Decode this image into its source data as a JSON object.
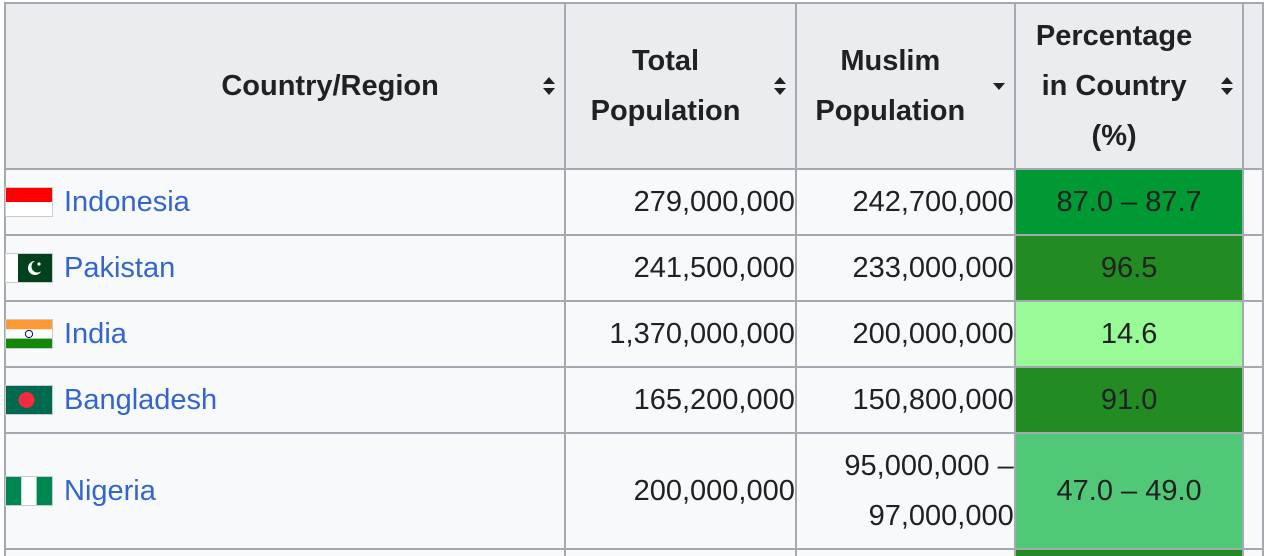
{
  "table": {
    "headers": {
      "country": "Country/Region",
      "total_line1": "Total",
      "total_line2": "Population",
      "muslim_line1": "Muslim",
      "muslim_line2": "Population",
      "pct_line1": "Percentage",
      "pct_line2": "in Country",
      "pct_line3": "(%)"
    },
    "sort_icons": {
      "country": "sort-both",
      "total": "sort-both",
      "muslim": "sort-descending",
      "pct": "sort-both"
    },
    "rows": [
      {
        "country": "Indonesia",
        "flag": "indonesia-flag",
        "total": "279,000,000",
        "muslim": "242,700,000",
        "percentage": "87.0 – 87.7",
        "pct_color": "#009933"
      },
      {
        "country": "Pakistan",
        "flag": "pakistan-flag",
        "total": "241,500,000",
        "muslim": "233,000,000",
        "percentage": "96.5",
        "pct_color": "#228b22"
      },
      {
        "country": "India",
        "flag": "india-flag",
        "total": "1,370,000,000",
        "muslim": "200,000,000",
        "percentage": "14.6",
        "pct_color": "#98fb98"
      },
      {
        "country": "Bangladesh",
        "flag": "bangladesh-flag",
        "total": "165,200,000",
        "muslim": "150,800,000",
        "percentage": "91.0",
        "pct_color": "#228b22"
      },
      {
        "country": "Nigeria",
        "flag": "nigeria-flag",
        "total": "200,000,000",
        "muslim_line1": "95,000,000 –",
        "muslim_line2": "97,000,000",
        "percentage": "47.0 – 49.0",
        "pct_color": "#50c878"
      }
    ],
    "partial_row_pct_color": "#228b22"
  }
}
